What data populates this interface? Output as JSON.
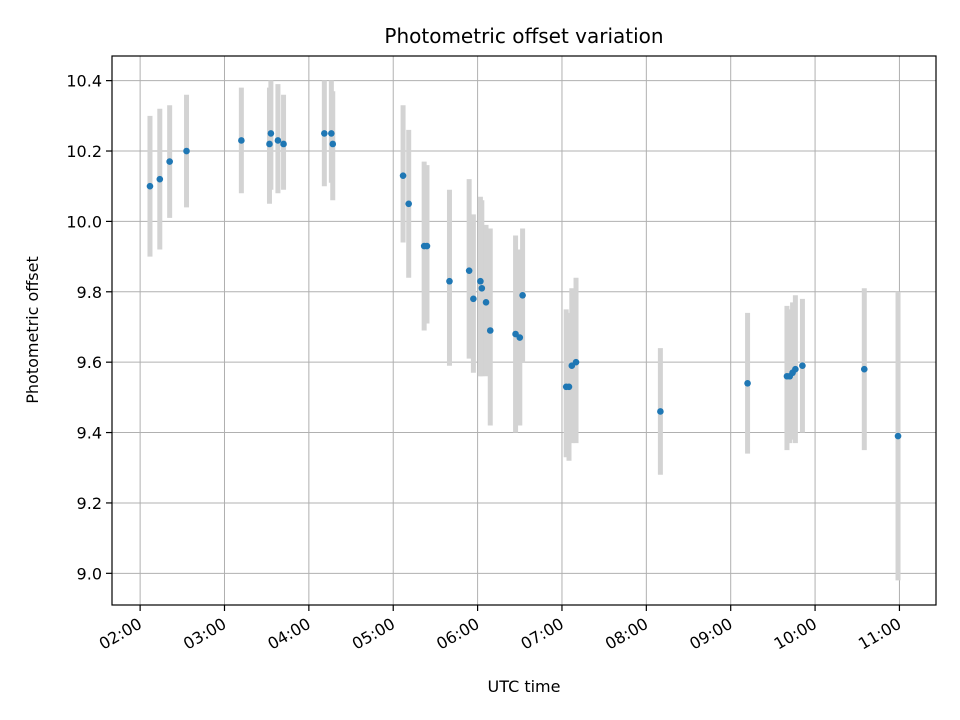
{
  "chart_data": {
    "type": "scatter",
    "title": "Photometric offset variation",
    "xlabel": "UTC time",
    "ylabel": "Photometric offset",
    "x_ticks": [
      "02:00",
      "03:00",
      "04:00",
      "05:00",
      "06:00",
      "07:00",
      "08:00",
      "09:00",
      "10:00",
      "11:00"
    ],
    "y_ticks": [
      "9.0",
      "9.2",
      "9.4",
      "9.6",
      "9.8",
      "10.0",
      "10.2",
      "10.4"
    ],
    "xlim": [
      "01:40",
      "11:26"
    ],
    "ylim": [
      8.91,
      10.47
    ],
    "grid": true,
    "colors": {
      "point": "#1f77b4",
      "errorbar": "#d3d3d3",
      "grid": "#b0b0b0"
    },
    "points": [
      {
        "t": "02:07",
        "y": 10.1,
        "lo": 9.9,
        "hi": 10.3
      },
      {
        "t": "02:14",
        "y": 10.12,
        "lo": 9.92,
        "hi": 10.32
      },
      {
        "t": "02:21",
        "y": 10.17,
        "lo": 10.01,
        "hi": 10.33
      },
      {
        "t": "02:33",
        "y": 10.2,
        "lo": 10.04,
        "hi": 10.36
      },
      {
        "t": "03:12",
        "y": 10.23,
        "lo": 10.08,
        "hi": 10.38
      },
      {
        "t": "03:32",
        "y": 10.22,
        "lo": 10.05,
        "hi": 10.38
      },
      {
        "t": "03:33",
        "y": 10.25,
        "lo": 10.09,
        "hi": 10.4
      },
      {
        "t": "03:38",
        "y": 10.23,
        "lo": 10.08,
        "hi": 10.39
      },
      {
        "t": "03:42",
        "y": 10.22,
        "lo": 10.09,
        "hi": 10.36
      },
      {
        "t": "04:11",
        "y": 10.25,
        "lo": 10.1,
        "hi": 10.4
      },
      {
        "t": "04:16",
        "y": 10.25,
        "lo": 10.11,
        "hi": 10.4
      },
      {
        "t": "04:17",
        "y": 10.22,
        "lo": 10.06,
        "hi": 10.37
      },
      {
        "t": "05:07",
        "y": 10.13,
        "lo": 9.94,
        "hi": 10.33
      },
      {
        "t": "05:11",
        "y": 10.05,
        "lo": 9.84,
        "hi": 10.26
      },
      {
        "t": "05:22",
        "y": 9.93,
        "lo": 9.69,
        "hi": 10.17
      },
      {
        "t": "05:24",
        "y": 9.93,
        "lo": 9.71,
        "hi": 10.16
      },
      {
        "t": "05:40",
        "y": 9.83,
        "lo": 9.59,
        "hi": 10.09
      },
      {
        "t": "05:54",
        "y": 9.86,
        "lo": 9.61,
        "hi": 10.12
      },
      {
        "t": "05:57",
        "y": 9.78,
        "lo": 9.57,
        "hi": 10.02
      },
      {
        "t": "06:02",
        "y": 9.83,
        "lo": 9.56,
        "hi": 10.07
      },
      {
        "t": "06:03",
        "y": 9.81,
        "lo": 9.56,
        "hi": 10.06
      },
      {
        "t": "06:06",
        "y": 9.77,
        "lo": 9.56,
        "hi": 9.99
      },
      {
        "t": "06:09",
        "y": 9.69,
        "lo": 9.42,
        "hi": 9.98
      },
      {
        "t": "06:27",
        "y": 9.68,
        "lo": 9.4,
        "hi": 9.96
      },
      {
        "t": "06:30",
        "y": 9.67,
        "lo": 9.42,
        "hi": 9.92
      },
      {
        "t": "06:32",
        "y": 9.79,
        "lo": 9.6,
        "hi": 9.98
      },
      {
        "t": "07:03",
        "y": 9.53,
        "lo": 9.33,
        "hi": 9.75
      },
      {
        "t": "07:05",
        "y": 9.53,
        "lo": 9.32,
        "hi": 9.74
      },
      {
        "t": "07:07",
        "y": 9.59,
        "lo": 9.37,
        "hi": 9.81
      },
      {
        "t": "07:10",
        "y": 9.6,
        "lo": 9.37,
        "hi": 9.84
      },
      {
        "t": "08:10",
        "y": 9.46,
        "lo": 9.28,
        "hi": 9.64
      },
      {
        "t": "09:12",
        "y": 9.54,
        "lo": 9.34,
        "hi": 9.74
      },
      {
        "t": "09:40",
        "y": 9.56,
        "lo": 9.35,
        "hi": 9.76
      },
      {
        "t": "09:42",
        "y": 9.56,
        "lo": 9.37,
        "hi": 9.75
      },
      {
        "t": "09:44",
        "y": 9.57,
        "lo": 9.38,
        "hi": 9.77
      },
      {
        "t": "09:46",
        "y": 9.58,
        "lo": 9.37,
        "hi": 9.79
      },
      {
        "t": "09:51",
        "y": 9.59,
        "lo": 9.4,
        "hi": 9.78
      },
      {
        "t": "10:35",
        "y": 9.58,
        "lo": 9.35,
        "hi": 9.81
      },
      {
        "t": "10:59",
        "y": 9.39,
        "lo": 8.98,
        "hi": 9.8
      }
    ]
  }
}
